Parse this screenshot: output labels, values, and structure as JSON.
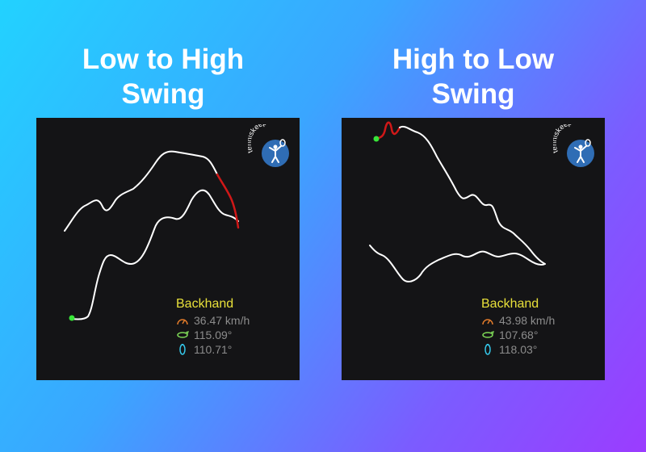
{
  "panels": [
    {
      "title_line1": "Low to High",
      "title_line2": "Swing",
      "logo_text": "tenniskeeper",
      "stroke_type": "Backhand",
      "speed": "36.47 km/h",
      "angle_1": "115.09°",
      "angle_2": "110.71°",
      "icons": [
        "speedometer-icon",
        "horizontal-rotation-icon",
        "vertical-rotation-icon"
      ]
    },
    {
      "title_line1": "High to Low",
      "title_line2": "Swing",
      "logo_text": "tenniskeeper",
      "stroke_type": "Backhand",
      "speed": "43.98 km/h",
      "angle_1": "107.68°",
      "angle_2": "118.03°",
      "icons": [
        "speedometer-icon",
        "horizontal-rotation-icon",
        "vertical-rotation-icon"
      ]
    }
  ],
  "colors": {
    "trajectory": "#ffffff",
    "impact_segment": "#d01818",
    "start_dot": "#39e639",
    "stroke_label": "#e8e03a",
    "stat_text": "#8c8c8c",
    "speed_icon": "#e07a2a",
    "rotation_icon_h": "#7ed957",
    "rotation_icon_v": "#34c6e8",
    "logo_bg": "#2f6db5"
  }
}
